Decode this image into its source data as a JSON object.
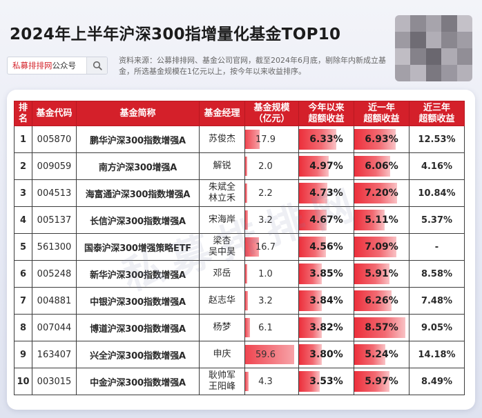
{
  "header": {
    "title": "2024年上半年沪深300指增量化基金TOP10",
    "search_brand": "私募排排网",
    "search_suffix": "公众号",
    "note": "资料来源：公募排排网、基金公司官网，截至2024年6月底，剔除年内新成立基金，所选基金规模在1亿元以上，按今年以来收益排序。"
  },
  "watermark": "私募排排网",
  "table": {
    "columns": [
      "排名",
      "基金代码",
      "基金简称",
      "基金经理",
      "基金规模\n（亿元）",
      "今年以来\n超额收益",
      "近一年\n超额收益",
      "近三年\n超额收益"
    ],
    "rows": [
      {
        "rank": "1",
        "code": "005870",
        "name": "鹏华沪深300指数增强A",
        "manager": "苏俊杰",
        "size": "17.9",
        "size_num": 17.9,
        "ytd": "6.33%",
        "ytd_num": 6.33,
        "y1": "6.93%",
        "y1_num": 6.93,
        "y3": "12.53%"
      },
      {
        "rank": "2",
        "code": "009059",
        "name": "南方沪深300增强A",
        "manager": "解锐",
        "size": "2.0",
        "size_num": 2.0,
        "ytd": "4.97%",
        "ytd_num": 4.97,
        "y1": "6.06%",
        "y1_num": 6.06,
        "y3": "4.16%"
      },
      {
        "rank": "3",
        "code": "004513",
        "name": "海富通沪深300指数增强A",
        "manager": "朱斌全\n林立禾",
        "size": "2.2",
        "size_num": 2.2,
        "ytd": "4.73%",
        "ytd_num": 4.73,
        "y1": "7.20%",
        "y1_num": 7.2,
        "y3": "10.84%"
      },
      {
        "rank": "4",
        "code": "005137",
        "name": "长信沪深300指数增强A",
        "manager": "宋海岸",
        "size": "3.2",
        "size_num": 3.2,
        "ytd": "4.67%",
        "ytd_num": 4.67,
        "y1": "5.11%",
        "y1_num": 5.11,
        "y3": "5.37%"
      },
      {
        "rank": "5",
        "code": "561300",
        "name": "国泰沪深300增强策略ETF",
        "manager": "梁杏\n吴中昊",
        "size": "16.7",
        "size_num": 16.7,
        "ytd": "4.56%",
        "ytd_num": 4.56,
        "y1": "7.09%",
        "y1_num": 7.09,
        "y3": "-"
      },
      {
        "rank": "6",
        "code": "005248",
        "name": "新华沪深300指数增强A",
        "manager": "邓岳",
        "size": "1.0",
        "size_num": 1.0,
        "ytd": "3.85%",
        "ytd_num": 3.85,
        "y1": "5.91%",
        "y1_num": 5.91,
        "y3": "8.58%"
      },
      {
        "rank": "7",
        "code": "004881",
        "name": "中银沪深300指数增强A",
        "manager": "赵志华",
        "size": "3.2",
        "size_num": 3.2,
        "ytd": "3.84%",
        "ytd_num": 3.84,
        "y1": "6.26%",
        "y1_num": 6.26,
        "y3": "7.48%"
      },
      {
        "rank": "8",
        "code": "007044",
        "name": "博道沪深300指数增强A",
        "manager": "杨梦",
        "size": "6.1",
        "size_num": 6.1,
        "ytd": "3.82%",
        "ytd_num": 3.82,
        "y1": "8.57%",
        "y1_num": 8.57,
        "y3": "9.05%"
      },
      {
        "rank": "9",
        "code": "163407",
        "name": "兴全沪深300指数增强A",
        "manager": "申庆",
        "size": "59.6",
        "size_num": 59.6,
        "ytd": "3.80%",
        "ytd_num": 3.8,
        "y1": "5.24%",
        "y1_num": 5.24,
        "y3": "14.18%"
      },
      {
        "rank": "10",
        "code": "003015",
        "name": "中金沪深300指数增强A",
        "manager": "耿帅军\n王阳峰",
        "size": "4.3",
        "size_num": 4.3,
        "ytd": "3.53%",
        "ytd_num": 3.53,
        "y1": "5.97%",
        "y1_num": 5.97,
        "y3": "8.49%"
      }
    ]
  },
  "colors": {
    "header_red": "#d4202a",
    "bar_red": "#ec2f3b"
  }
}
